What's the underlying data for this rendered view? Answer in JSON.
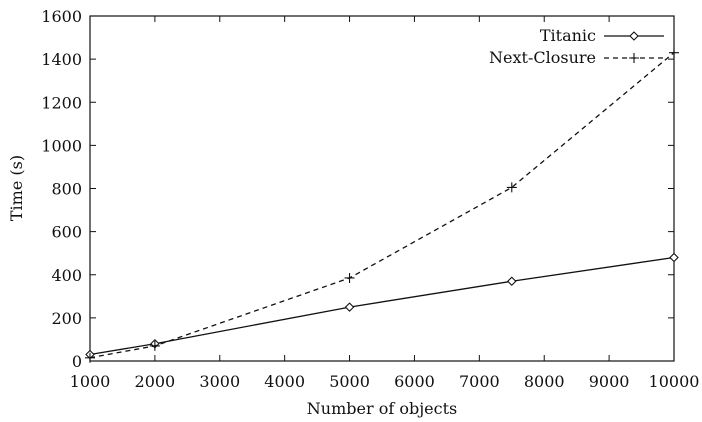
{
  "chart_data": {
    "type": "line",
    "xlabel": "Number of objects",
    "ylabel": "Time (s)",
    "xlim": [
      1000,
      10000
    ],
    "ylim": [
      0,
      1600
    ],
    "xticks": [
      1000,
      2000,
      3000,
      4000,
      5000,
      6000,
      7000,
      8000,
      9000,
      10000
    ],
    "yticks": [
      0,
      200,
      400,
      600,
      800,
      1000,
      1200,
      1400,
      1600
    ],
    "grid": false,
    "legend_position": "top-right",
    "series": [
      {
        "name": "Titanic",
        "style": "solid",
        "marker": "diamond",
        "x": [
          1000,
          2000,
          5000,
          7500,
          10000
        ],
        "y": [
          30,
          80,
          250,
          370,
          480
        ]
      },
      {
        "name": "Next-Closure",
        "style": "dashed",
        "marker": "plus",
        "x": [
          1000,
          2000,
          5000,
          7500,
          10000
        ],
        "y": [
          15,
          70,
          385,
          805,
          1430
        ]
      }
    ]
  }
}
